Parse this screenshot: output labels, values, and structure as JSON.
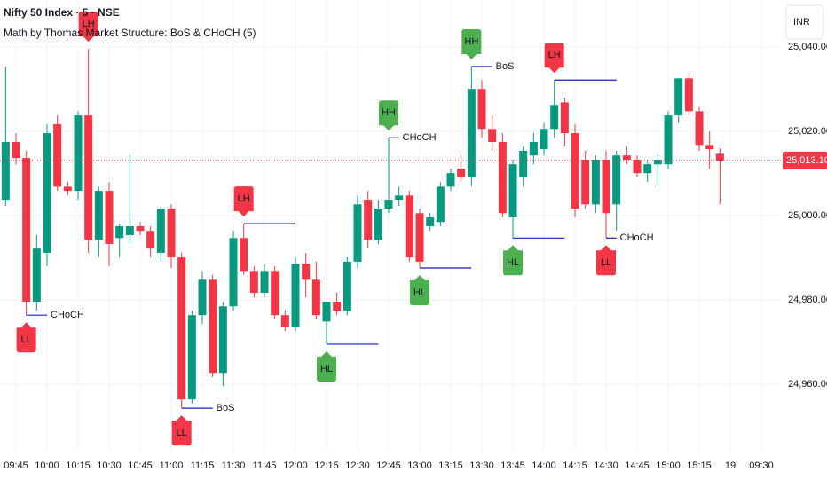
{
  "chart_data": {
    "type": "candlestick",
    "title": "Nifty 50 Index · 5 · NSE",
    "subtitle": "Math by Thomas Market Structure: BoS & CHoCH (5)",
    "currency": "INR",
    "categories": [
      null,
      "09:45",
      null,
      null,
      "10:00",
      null,
      null,
      "10:15",
      null,
      null,
      "10:30",
      null,
      null,
      "10:45",
      null,
      null,
      "11:00",
      null,
      null,
      "11:15",
      null,
      null,
      "11:30",
      null,
      null,
      "11:45",
      null,
      null,
      "12:00",
      null,
      null,
      "12:15",
      null,
      null,
      "12:30",
      null,
      null,
      "12:45",
      null,
      null,
      "13:00",
      null,
      null,
      "13:15",
      null,
      null,
      "13:30",
      null,
      null,
      "13:45",
      null,
      null,
      "14:00",
      null,
      null,
      "14:15",
      null,
      null,
      "14:30",
      null,
      null,
      "14:45",
      null,
      null,
      "15:00",
      null,
      null,
      "15:15",
      null,
      null,
      "19",
      null,
      null,
      "09:30"
    ],
    "open": [
      25003.8,
      25017.5,
      25013.7,
      24979.6,
      24991.2,
      25021.7,
      25006.9,
      25005.9,
      25023.8,
      24994.3,
      25005.9,
      24994.7,
      24995.4,
      24997.5,
      24996.4,
      24991.2,
      25001.7,
      24990.1,
      24956.4,
      24976.4,
      24984.8,
      24962.7,
      24978.5,
      24994.7,
      24986.9,
      24981.7,
      24986.9,
      24976.4,
      24973.7,
      24988.6,
      24984.8,
      24974.9,
      24979.6,
      24977.5,
      24989.1,
      25003.8,
      24994.3,
      25001.7,
      25003.8,
      25004.8,
      25000.6,
      24997.5,
      24998.5,
      25006.9,
      25011.2,
      25009.1,
      25030.1,
      25020.6,
      25017.5,
      24999.6,
      25009.1,
      25014.3,
      25015.8,
      25020.6,
      25026.9,
      25019.6,
      25013.3,
      25002.7,
      25013.3,
      25002.7,
      25014.3,
      25013.3,
      25010.1,
      25012.2,
      25012.2,
      25023.8,
      25032.6,
      25024.8,
      25016.8,
      25014.7,
      null,
      null,
      null,
      null
    ],
    "high": [
      25035.4,
      25019.6,
      25015.4,
      24995.4,
      25021.7,
      25023.8,
      25008.0,
      25024.8,
      25039.6,
      25006.9,
      25008.0,
      24998.1,
      25014.3,
      24998.5,
      24997.5,
      25002.3,
      25002.7,
      24991.2,
      24977.5,
      24986.9,
      24986.0,
      24979.6,
      24996.4,
      24998.1,
      24988.0,
      24988.6,
      24988.0,
      24977.5,
      24990.1,
      24991.2,
      24989.1,
      24979.6,
      24981.7,
      24990.1,
      25004.8,
      25005.9,
      25003.8,
      25018.5,
      25006.9,
      25005.9,
      25001.7,
      25000.6,
      25008.0,
      25011.2,
      25014.3,
      25035.4,
      25032.2,
      25023.8,
      25019.6,
      25013.3,
      25016.4,
      25019.6,
      25022.0,
      25032.2,
      25028.0,
      25021.7,
      25015.4,
      25014.3,
      25015.4,
      25015.4,
      25016.4,
      25014.3,
      25013.3,
      25014.3,
      25024.8,
      25032.6,
      25034.0,
      25025.8,
      25020.0,
      25016.0,
      null,
      null,
      null,
      null
    ],
    "low": [
      25002.3,
      25012.2,
      24976.4,
      24977.5,
      24988.0,
      25005.9,
      25004.8,
      25003.8,
      24991.2,
      24990.1,
      24988.0,
      24990.1,
      24993.3,
      24995.4,
      24990.1,
      24989.1,
      24987.6,
      24954.3,
      24955.4,
      24974.3,
      24961.7,
      24959.6,
      24977.5,
      24986.0,
      24980.6,
      24980.6,
      24975.4,
      24972.6,
      24972.6,
      24980.6,
      24975.4,
      24969.5,
      24976.4,
      24976.4,
      24987.6,
      24992.2,
      24993.3,
      25000.6,
      25002.3,
      24989.1,
      24987.6,
      24996.4,
      24997.5,
      25005.9,
      25008.0,
      25007.0,
      25018.5,
      25015.4,
      24999.6,
      24994.7,
      25006.9,
      25012.2,
      25014.3,
      25018.5,
      25016.4,
      24999.6,
      25001.7,
      25000.6,
      24994.7,
      24996.4,
      25012.2,
      25009.1,
      25008.0,
      25007.0,
      25011.2,
      25022.0,
      25023.8,
      25015.4,
      25011.2,
      25002.7,
      null,
      null,
      null,
      null
    ],
    "close": [
      25017.5,
      25013.7,
      24979.6,
      24992.2,
      25019.6,
      25006.9,
      25005.9,
      25023.8,
      24994.3,
      25005.9,
      24993.3,
      24997.5,
      24997.5,
      24996.4,
      24992.2,
      25001.7,
      24990.1,
      24956.4,
      24976.4,
      24984.8,
      24962.7,
      24978.5,
      24994.7,
      24986.9,
      24981.7,
      24986.9,
      24976.4,
      24973.7,
      24988.6,
      24984.8,
      24976.4,
      24979.6,
      24977.5,
      24989.1,
      25002.7,
      24994.3,
      25001.7,
      25003.8,
      25004.8,
      24990.1,
      24989.1,
      24999.6,
      25006.9,
      25010.1,
      25009.1,
      25030.1,
      25020.6,
      25017.5,
      25000.6,
      25012.2,
      25015.4,
      25017.5,
      25020.6,
      25026.3,
      25019.6,
      25001.7,
      25002.7,
      25013.3,
      25000.6,
      25014.3,
      25013.3,
      25010.1,
      25012.2,
      25013.3,
      25023.8,
      25032.6,
      25024.8,
      25016.8,
      25015.8,
      25013.1,
      null,
      null,
      null,
      null
    ],
    "up_color": "#089981",
    "down_color": "#f23645",
    "ylim": [
      24943.8,
      25051.2
    ],
    "yticks": [
      {
        "value": 25040,
        "label": "25,040.00"
      },
      {
        "value": 25020,
        "label": "25,020.00"
      },
      {
        "value": 25000,
        "label": "25,000.00"
      },
      {
        "value": 24980,
        "label": "24,980.00"
      },
      {
        "value": 24960,
        "label": "24,960.00"
      }
    ],
    "grid": true,
    "last_price": {
      "value": 25013.1,
      "label": "25,013.10",
      "color": "#f23645"
    },
    "level_color": "#1a1acc",
    "structures": [
      {
        "label": "LL",
        "index": 2,
        "level": 24976.4,
        "to": 4,
        "break": "CHoCH",
        "color": "#f23645"
      },
      {
        "label": "LH",
        "index": 8,
        "level": 25039.6,
        "color": "#f23645"
      },
      {
        "label": "LL",
        "index": 17,
        "level": 24954.3,
        "to": 20,
        "break": "BoS",
        "color": "#f23645"
      },
      {
        "label": "LH",
        "index": 23,
        "level": 24998.1,
        "to": 28,
        "color": "#f23645"
      },
      {
        "label": "HL",
        "index": 31,
        "level": 24969.5,
        "to": 36,
        "color": "#4caf50"
      },
      {
        "label": "HH",
        "index": 37,
        "level": 25018.5,
        "to": 38,
        "break": "CHoCH",
        "color": "#4caf50"
      },
      {
        "label": "HL",
        "index": 40,
        "level": 24987.6,
        "to": 45,
        "color": "#4caf50"
      },
      {
        "label": "HH",
        "index": 45,
        "level": 25035.4,
        "to": 47,
        "break": "BoS",
        "color": "#4caf50"
      },
      {
        "label": "HL",
        "index": 49,
        "level": 24994.7,
        "to": 54,
        "color": "#4caf50"
      },
      {
        "label": "LH",
        "index": 53,
        "level": 25032.2,
        "to": 59,
        "color": "#f23645"
      },
      {
        "label": "LL",
        "index": 58,
        "level": 24994.7,
        "to": 59,
        "break": "CHoCH",
        "color": "#f23645"
      }
    ]
  }
}
